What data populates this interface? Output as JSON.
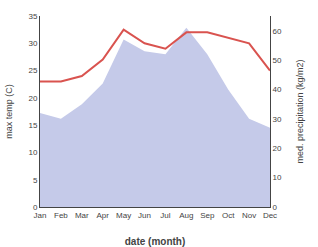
{
  "chart_data": {
    "type": "line",
    "xlabel": "date (month)",
    "ylabel": "max temp (C)",
    "y2label": "med. precipitation (kg/m2)",
    "categories": [
      "Jan",
      "Feb",
      "Mar",
      "Apr",
      "May",
      "Jun",
      "Jul",
      "Aug",
      "Sep",
      "Oct",
      "Nov",
      "Dec"
    ],
    "series": [
      {
        "type": "area",
        "axis": "y2",
        "color": "#c5cae9",
        "values": [
          32,
          30,
          35,
          42,
          57,
          53,
          52,
          61,
          52,
          40,
          30,
          27
        ]
      },
      {
        "type": "line",
        "color": "#d9534f",
        "values": [
          23,
          23,
          24,
          27,
          32.5,
          30,
          29,
          32,
          32,
          31,
          30,
          25
        ]
      }
    ],
    "ylim": [
      0,
      35
    ],
    "yticks": [
      0,
      5,
      10,
      15,
      20,
      25,
      30,
      35
    ],
    "y2lim": [
      0,
      65
    ],
    "y2ticks": [
      0,
      10,
      20,
      30,
      40,
      50,
      60
    ],
    "grid": false
  }
}
